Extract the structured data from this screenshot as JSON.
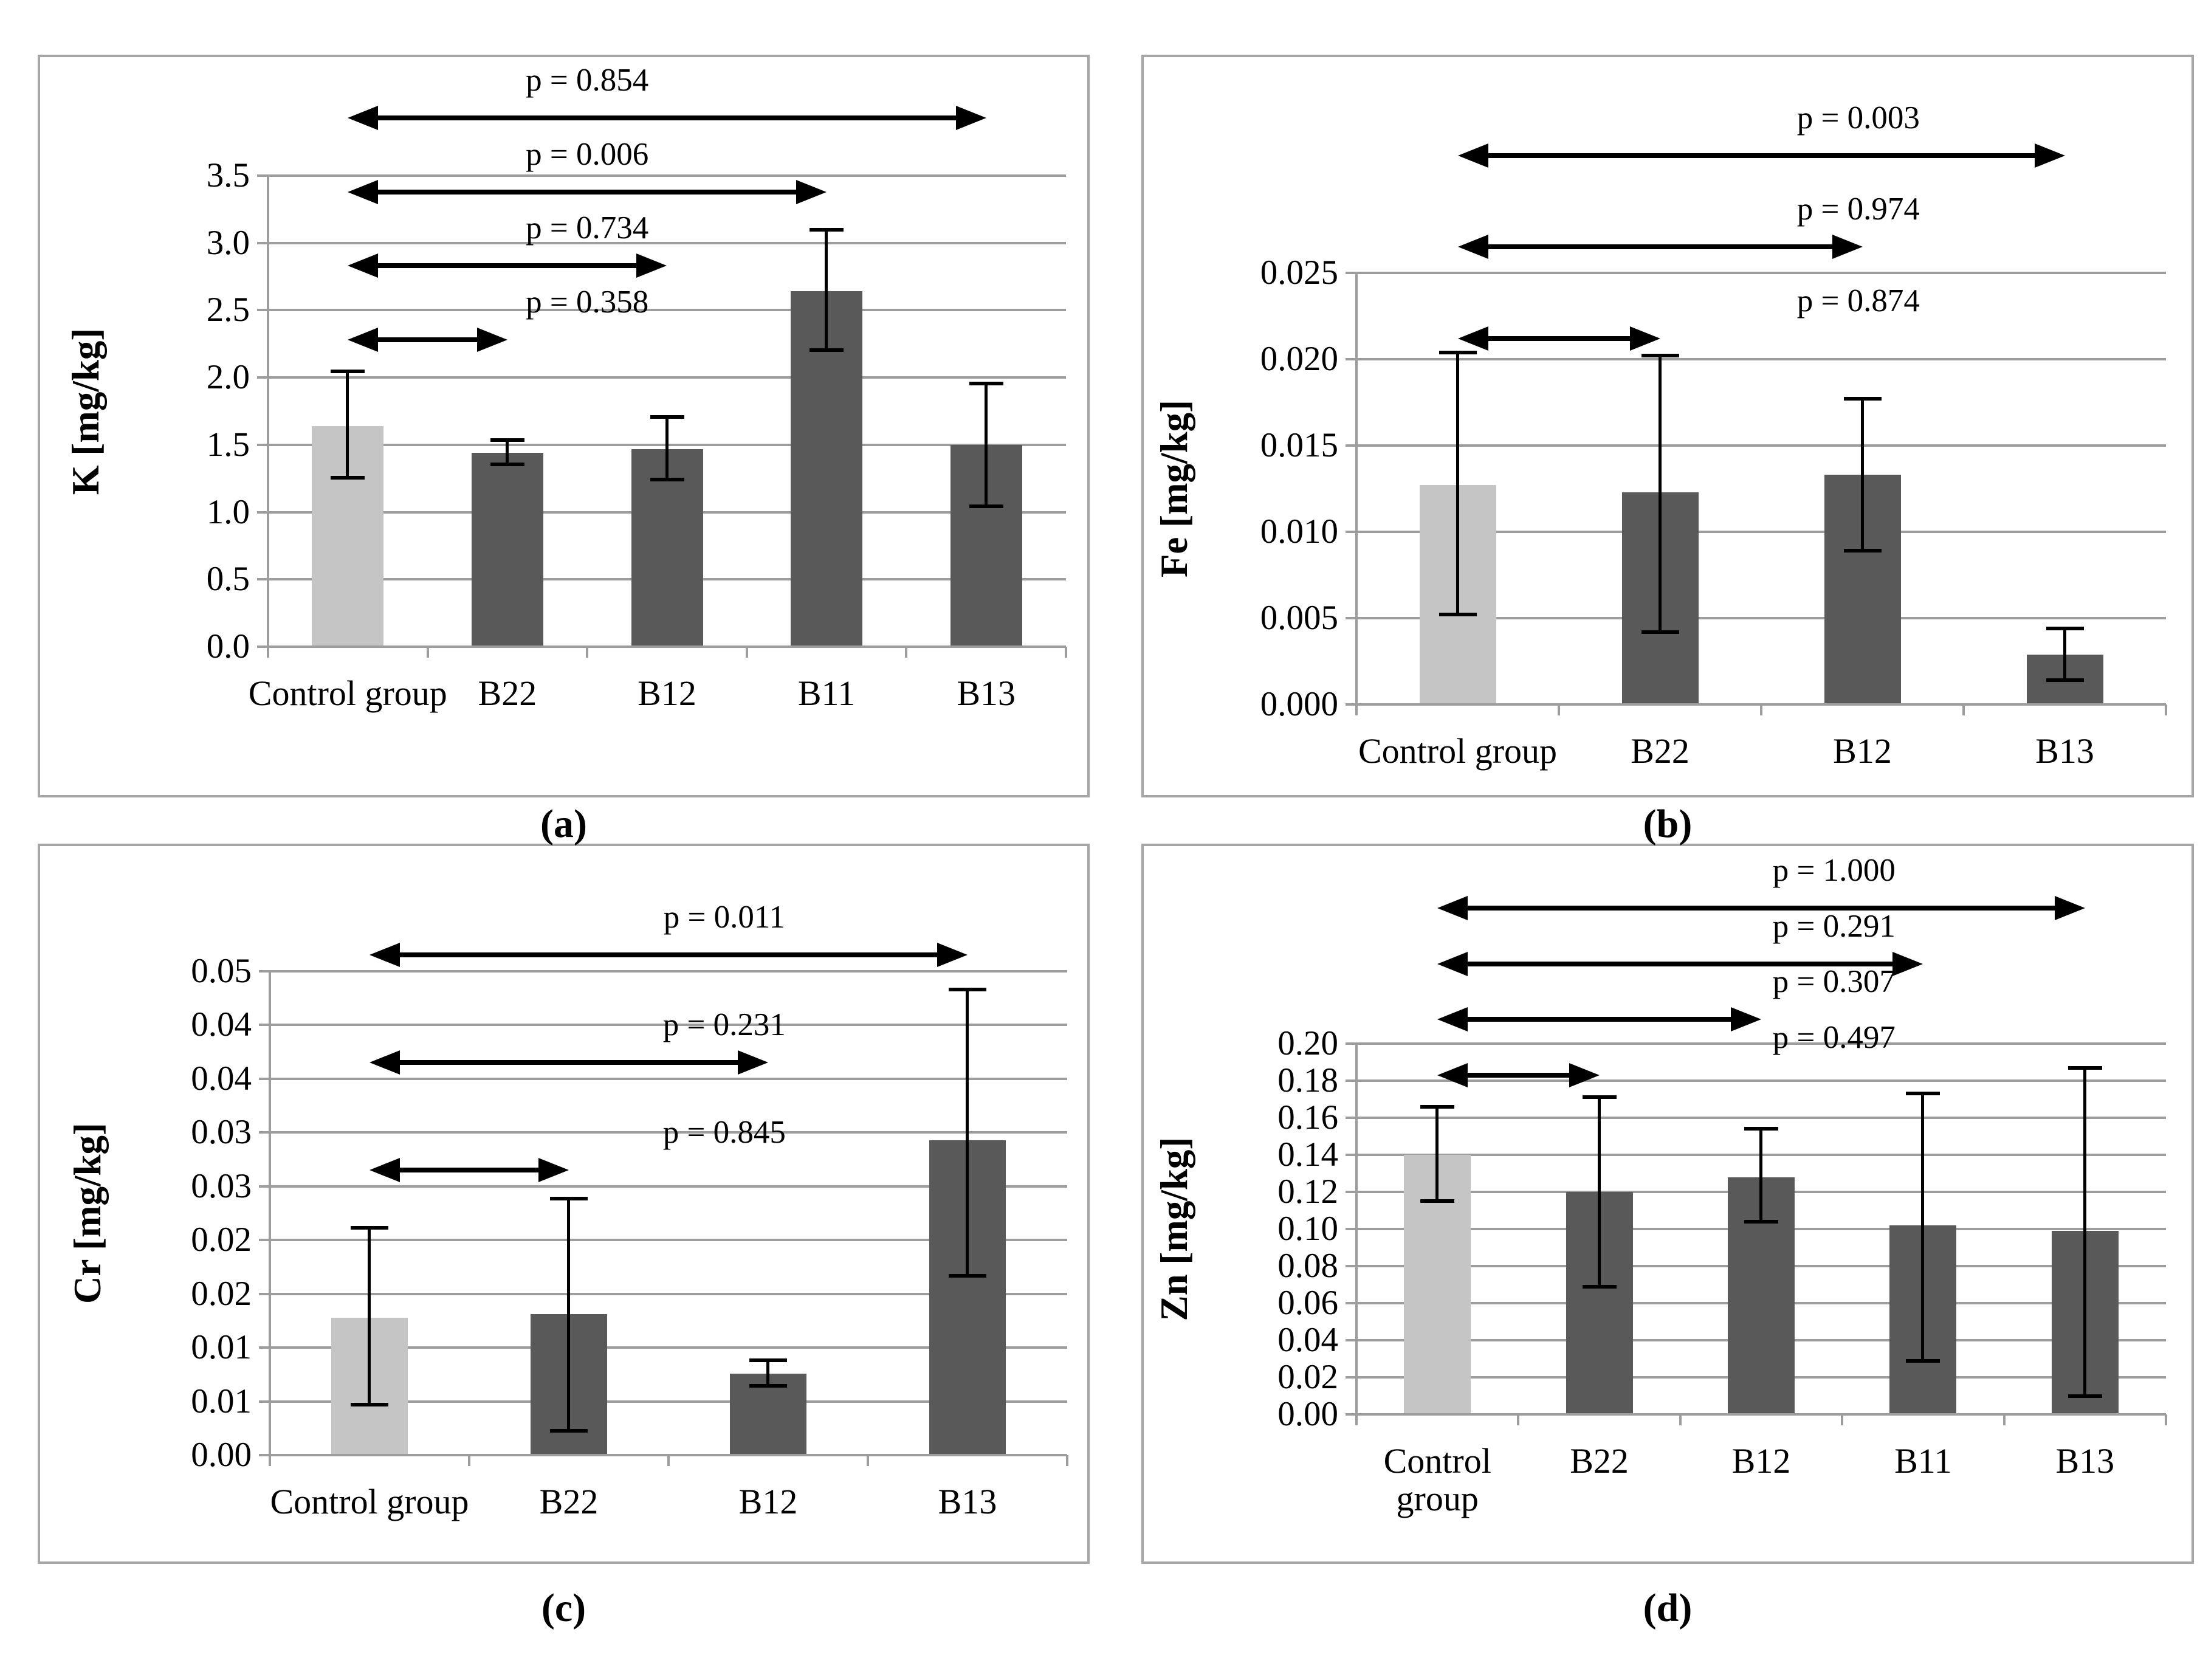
{
  "figure": {
    "captions": [
      "(a)",
      "(b)",
      "(c)",
      "(d)"
    ]
  },
  "colors": {
    "control_bar": "#c5c5c5",
    "treatment_bar": "#595959",
    "gridline": "#9d9d9d",
    "frame": "#a6a6a6",
    "annotation": "#000000"
  },
  "chart_data": [
    {
      "type": "bar",
      "panel": "a",
      "ylabel": "K [mg/kg]",
      "ylim": [
        0,
        3.5
      ],
      "grid": true,
      "yticks": [
        {
          "value": 3.5,
          "label": "3.5"
        },
        {
          "value": 3.0,
          "label": "3.0"
        },
        {
          "value": 2.5,
          "label": "2.5"
        },
        {
          "value": 2.0,
          "label": "2.0"
        },
        {
          "value": 1.5,
          "label": "1.5"
        },
        {
          "value": 1.0,
          "label": "1.0"
        },
        {
          "value": 0.5,
          "label": "0.5"
        },
        {
          "value": 0.0,
          "label": "0.0"
        }
      ],
      "categories": [
        "Control group",
        "B22",
        "B12",
        "B11",
        "B13"
      ],
      "bars": [
        {
          "category": "Control group",
          "value": 1.64,
          "err_low": 1.24,
          "err_high": 2.06,
          "control": true
        },
        {
          "category": "B22",
          "value": 1.44,
          "err_low": 1.34,
          "err_high": 1.55,
          "control": false
        },
        {
          "category": "B12",
          "value": 1.47,
          "err_low": 1.23,
          "err_high": 1.72,
          "control": false
        },
        {
          "category": "B11",
          "value": 2.64,
          "err_low": 2.19,
          "err_high": 3.11,
          "control": false
        },
        {
          "category": "B13",
          "value": 1.5,
          "err_low": 1.03,
          "err_high": 1.97,
          "control": false
        }
      ],
      "comparisons": [
        {
          "label": "p = 0.358",
          "from": 0,
          "to": 1,
          "height": 2.28
        },
        {
          "label": "p = 0.734",
          "from": 0,
          "to": 2,
          "height": 2.83
        },
        {
          "label": "p = 0.006",
          "from": 0,
          "to": 3,
          "height": 3.38
        },
        {
          "label": "p = 0.854",
          "from": 0,
          "to": 4,
          "height": 3.93
        }
      ]
    },
    {
      "type": "bar",
      "panel": "b",
      "ylabel": "Fe [mg/kg]",
      "ylim": [
        0,
        0.025
      ],
      "grid": true,
      "yticks": [
        {
          "value": 0.025,
          "label": "0.025"
        },
        {
          "value": 0.02,
          "label": "0.020"
        },
        {
          "value": 0.015,
          "label": "0.015"
        },
        {
          "value": 0.01,
          "label": "0.010"
        },
        {
          "value": 0.005,
          "label": "0.005"
        },
        {
          "value": 0.0,
          "label": "0.000"
        }
      ],
      "categories": [
        "Control group",
        "B22",
        "B12",
        "B13"
      ],
      "bars": [
        {
          "category": "Control group",
          "value": 0.0127,
          "err_low": 0.0051,
          "err_high": 0.0205,
          "control": true
        },
        {
          "category": "B22",
          "value": 0.0123,
          "err_low": 0.0041,
          "err_high": 0.0203,
          "control": false
        },
        {
          "category": "B12",
          "value": 0.0133,
          "err_low": 0.0088,
          "err_high": 0.0178,
          "control": false
        },
        {
          "category": "B13",
          "value": 0.0029,
          "err_low": 0.0013,
          "err_high": 0.0045,
          "control": false
        }
      ],
      "comparisons": [
        {
          "label": "p = 0.874",
          "from": 0,
          "to": 1,
          "height": 0.0212
        },
        {
          "label": "p = 0.974",
          "from": 0,
          "to": 2,
          "height": 0.0265
        },
        {
          "label": "p = 0.003",
          "from": 0,
          "to": 3,
          "height": 0.0318
        }
      ]
    },
    {
      "type": "bar",
      "panel": "c",
      "ylabel": "Cr [mg/kg]",
      "ylim": [
        0,
        0.045
      ],
      "grid": true,
      "yticks": [
        {
          "value": 0.045,
          "label": "0.05"
        },
        {
          "value": 0.04,
          "label": "0.04"
        },
        {
          "value": 0.035,
          "label": "0.04"
        },
        {
          "value": 0.03,
          "label": "0.03"
        },
        {
          "value": 0.025,
          "label": "0.03"
        },
        {
          "value": 0.02,
          "label": "0.02"
        },
        {
          "value": 0.015,
          "label": "0.02"
        },
        {
          "value": 0.01,
          "label": "0.01"
        },
        {
          "value": 0.005,
          "label": "0.01"
        },
        {
          "value": 0.0,
          "label": "0.00"
        }
      ],
      "categories": [
        "Control group",
        "B22",
        "B12",
        "B13"
      ],
      "bars": [
        {
          "category": "Control group",
          "value": 0.0128,
          "err_low": 0.0045,
          "err_high": 0.0213,
          "control": true
        },
        {
          "category": "B22",
          "value": 0.0131,
          "err_low": 0.0021,
          "err_high": 0.024,
          "control": false
        },
        {
          "category": "B12",
          "value": 0.0076,
          "err_low": 0.0063,
          "err_high": 0.009,
          "control": false
        },
        {
          "category": "B13",
          "value": 0.0293,
          "err_low": 0.0165,
          "err_high": 0.0435,
          "control": false
        }
      ],
      "comparisons": [
        {
          "label": "p = 0.845",
          "from": 0,
          "to": 1,
          "height": 0.0265
        },
        {
          "label": "p = 0.231",
          "from": 0,
          "to": 2,
          "height": 0.0365
        },
        {
          "label": "p = 0.011",
          "from": 0,
          "to": 3,
          "height": 0.0465
        }
      ]
    },
    {
      "type": "bar",
      "panel": "d",
      "ylabel": "Zn [mg/kg]",
      "ylim": [
        0,
        0.2
      ],
      "grid": true,
      "yticks": [
        {
          "value": 0.2,
          "label": "0.20"
        },
        {
          "value": 0.18,
          "label": "0.18"
        },
        {
          "value": 0.16,
          "label": "0.16"
        },
        {
          "value": 0.14,
          "label": "0.14"
        },
        {
          "value": 0.12,
          "label": "0.12"
        },
        {
          "value": 0.1,
          "label": "0.10"
        },
        {
          "value": 0.08,
          "label": "0.08"
        },
        {
          "value": 0.06,
          "label": "0.06"
        },
        {
          "value": 0.04,
          "label": "0.04"
        },
        {
          "value": 0.02,
          "label": "0.02"
        },
        {
          "value": 0.0,
          "label": "0.00"
        }
      ],
      "categories": [
        "Control group",
        "B22",
        "B12",
        "B11",
        "B13"
      ],
      "bars": [
        {
          "category": "Control group",
          "value": 0.14,
          "err_low": 0.114,
          "err_high": 0.167,
          "control": true
        },
        {
          "category": "B22",
          "value": 0.12,
          "err_low": 0.068,
          "err_high": 0.172,
          "control": false
        },
        {
          "category": "B12",
          "value": 0.128,
          "err_low": 0.103,
          "err_high": 0.155,
          "control": false
        },
        {
          "category": "B11",
          "value": 0.102,
          "err_low": 0.028,
          "err_high": 0.174,
          "control": false
        },
        {
          "category": "B13",
          "value": 0.099,
          "err_low": 0.009,
          "err_high": 0.188,
          "control": false
        }
      ],
      "comparisons": [
        {
          "label": "p = 0.497",
          "from": 0,
          "to": 1,
          "height": 0.183
        },
        {
          "label": "p = 0.307",
          "from": 0,
          "to": 2,
          "height": 0.213
        },
        {
          "label": "p = 0.291",
          "from": 0,
          "to": 3,
          "height": 0.243
        },
        {
          "label": "p = 1.000",
          "from": 0,
          "to": 4,
          "height": 0.273
        }
      ]
    }
  ]
}
